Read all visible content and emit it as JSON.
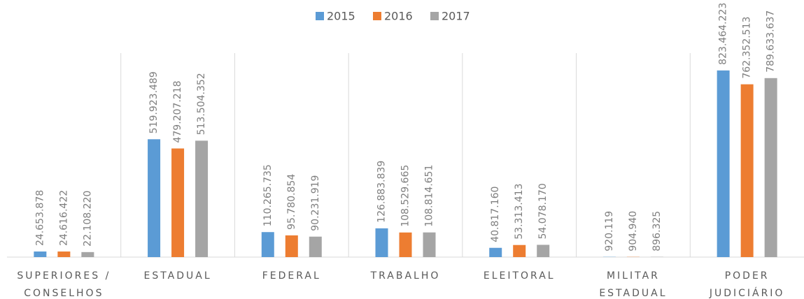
{
  "chart_data": {
    "type": "bar",
    "categories": [
      "SUPERIORES / CONSELHOS",
      "ESTADUAL",
      "FEDERAL",
      "TRABALHO",
      "ELEITORAL",
      "MILITAR ESTADUAL",
      "PODER JUDICIÁRIO"
    ],
    "series": [
      {
        "name": "2015",
        "color": "#5b9bd5",
        "values": [
          24653878,
          519923489,
          110265735,
          126883839,
          40817160,
          920119,
          823464223
        ],
        "value_labels": [
          "24.653.878",
          "519.923.489",
          "110.265.735",
          "126.883.839",
          "40.817.160",
          "920.119",
          "823.464.223"
        ]
      },
      {
        "name": "2016",
        "color": "#ed7d31",
        "values": [
          24616422,
          479207218,
          95780854,
          108529665,
          53313413,
          904940,
          762352513
        ],
        "value_labels": [
          "24.616.422",
          "479.207.218",
          "95.780.854",
          "108.529.665",
          "53.313.413",
          "904.940",
          "762.352.513"
        ]
      },
      {
        "name": "2017",
        "color": "#a5a5a5",
        "values": [
          22108220,
          513504352,
          90231919,
          108814651,
          54078170,
          896325,
          789633637
        ],
        "value_labels": [
          "22.108.220",
          "513.504.352",
          "90.231.919",
          "108.814.651",
          "54.078.170",
          "896.325",
          "789.633.637"
        ]
      }
    ],
    "ylim": [
      0,
      900000000
    ],
    "legend": "top"
  }
}
